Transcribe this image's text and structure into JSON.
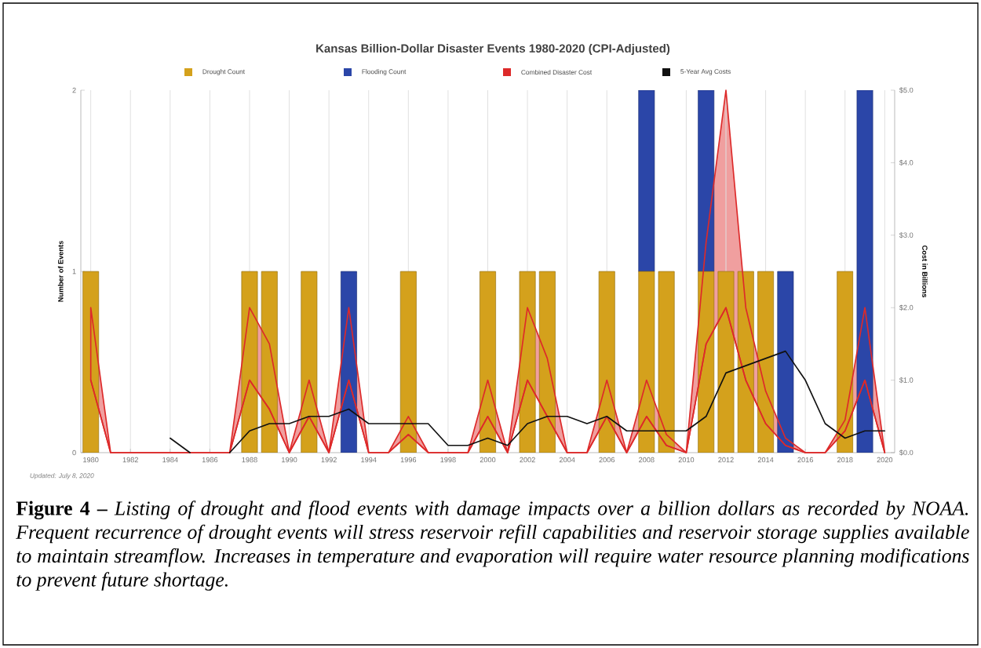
{
  "chart_data": {
    "type": "bar",
    "title": "Kansas Billion-Dollar Disaster Events 1980-2020 (CPI-Adjusted)",
    "ylabel": "Number of Events",
    "y2label": "Cost in Billions",
    "x": [
      1980,
      1981,
      1982,
      1983,
      1984,
      1985,
      1986,
      1987,
      1988,
      1989,
      1990,
      1991,
      1992,
      1993,
      1994,
      1995,
      1996,
      1997,
      1998,
      1999,
      2000,
      2001,
      2002,
      2003,
      2004,
      2005,
      2006,
      2007,
      2008,
      2009,
      2010,
      2011,
      2012,
      2013,
      2014,
      2015,
      2016,
      2017,
      2018,
      2019,
      2020
    ],
    "series": [
      {
        "name": "Drought Count",
        "type": "bar",
        "color": "#d4a11c",
        "values": [
          1,
          0,
          0,
          0,
          0,
          0,
          0,
          0,
          1,
          1,
          0,
          1,
          0,
          0,
          0,
          0,
          1,
          0,
          0,
          0,
          1,
          0,
          1,
          1,
          0,
          0,
          1,
          0,
          1,
          1,
          0,
          1,
          1,
          1,
          1,
          0,
          0,
          0,
          1,
          0,
          0
        ]
      },
      {
        "name": "Flooding Count",
        "type": "bar",
        "color": "#2b46a8",
        "values": [
          0,
          0,
          0,
          0,
          0,
          0,
          0,
          0,
          0,
          0,
          0,
          0,
          0,
          1,
          0,
          0,
          0,
          0,
          0,
          0,
          0,
          0,
          0,
          0,
          0,
          0,
          0,
          0,
          1,
          0,
          0,
          1,
          0,
          0,
          0,
          1,
          0,
          0,
          0,
          2,
          0
        ]
      },
      {
        "name": "Combined Disaster Cost",
        "type": "line",
        "axis": "y2",
        "color": "#dd2a2a",
        "values": [
          1.0,
          0,
          0,
          0,
          0,
          0,
          0,
          0,
          1.0,
          0.6,
          0,
          0.5,
          0,
          1.0,
          0,
          0,
          0.25,
          0,
          0,
          0,
          0.5,
          0,
          1.0,
          0.5,
          0,
          0,
          0.5,
          0,
          0.5,
          0.1,
          0,
          1.5,
          2.0,
          1.0,
          0.4,
          0.1,
          0,
          0,
          0.3,
          1.0,
          0
        ],
        "lower": [
          1.0,
          0,
          0,
          0,
          0,
          0,
          0,
          0,
          1.0,
          0.6,
          0,
          0.5,
          0,
          1.0,
          0,
          0,
          0.25,
          0,
          0,
          0,
          0.5,
          0,
          1.0,
          0.5,
          0,
          0,
          0.5,
          0,
          0.5,
          0.1,
          0,
          1.5,
          2.0,
          1.0,
          0.4,
          0.1,
          0,
          0,
          0.3,
          1.0,
          0
        ],
        "upper": [
          2.0,
          0,
          0,
          0,
          0,
          0,
          0,
          0,
          2.0,
          1.5,
          0,
          1.0,
          0,
          2.0,
          0,
          0,
          0.5,
          0,
          0,
          0,
          1.0,
          0,
          2.0,
          1.3,
          0,
          0,
          1.0,
          0,
          1.0,
          0.25,
          0,
          2.9,
          5.0,
          2.0,
          0.85,
          0.2,
          0,
          0,
          0.45,
          2.0,
          0
        ]
      },
      {
        "name": "5-Year Avg Costs",
        "type": "line",
        "axis": "y2",
        "color": "#111111",
        "values": [
          null,
          null,
          null,
          null,
          0.2,
          0,
          null,
          0,
          0.3,
          0.4,
          0.4,
          0.5,
          0.5,
          0.6,
          0.4,
          0.4,
          0.4,
          0.4,
          0.1,
          0.1,
          0.2,
          0.1,
          0.4,
          0.5,
          0.5,
          0.4,
          0.5,
          0.3,
          0.3,
          0.3,
          0.3,
          0.5,
          1.1,
          1.2,
          1.3,
          1.4,
          1.0,
          0.4,
          0.2,
          0.3,
          0.3
        ]
      }
    ],
    "stacked": true,
    "xlim": [
      1979.5,
      2020.5
    ],
    "xticks": [
      1980,
      1982,
      1984,
      1986,
      1988,
      1990,
      1992,
      1994,
      1996,
      1998,
      2000,
      2002,
      2004,
      2006,
      2008,
      2010,
      2012,
      2014,
      2016,
      2018,
      2020
    ],
    "ylim": [
      0,
      2
    ],
    "yticks": [
      0,
      1,
      2
    ],
    "y2lim": [
      0,
      5
    ],
    "y2ticks": [
      {
        "value": 0,
        "label": "$0.0"
      },
      {
        "value": 1,
        "label": "$1.0"
      },
      {
        "value": 2,
        "label": "$2.0"
      },
      {
        "value": 3,
        "label": "$3.0"
      },
      {
        "value": 4,
        "label": "$4.0"
      },
      {
        "value": 5,
        "label": "$5.0"
      }
    ],
    "grid": "x",
    "legend": "top",
    "annotations": [
      "Updated: July 8, 2020",
      "**Figure 4 –** *Listing of drought and flood events with damage impacts over a billion dollars as recorded by NOAA. Frequent recurrence of drought events will stress reservoir refill capabilities and reservoir storage supplies available to maintain streamflow. Increases in temperature and evaporation will require water resource planning modifications to prevent future shortage.*"
    ]
  }
}
